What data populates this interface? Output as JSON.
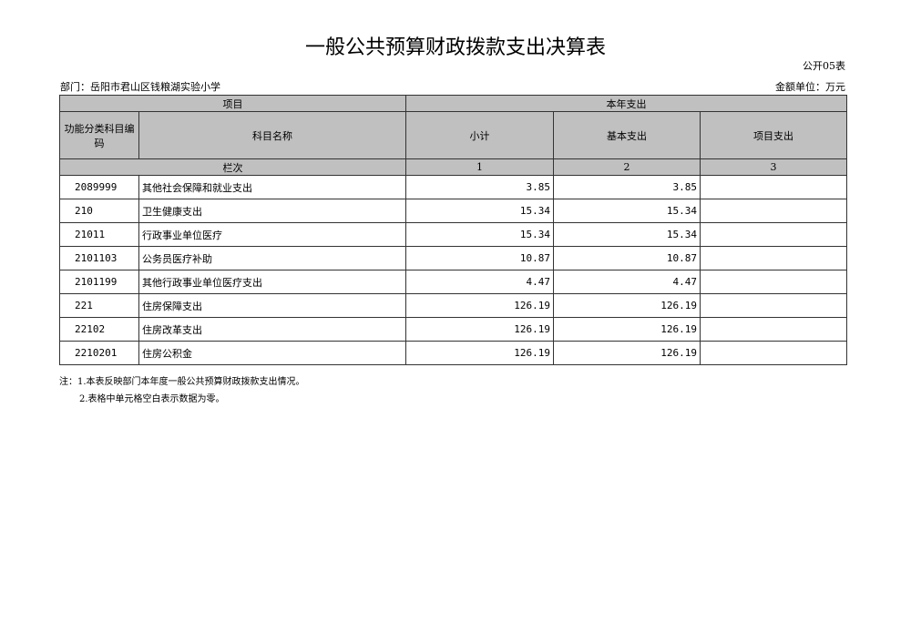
{
  "title": "一般公共预算财政拨款支出决算表",
  "table_no": "公开05表",
  "department": "部门：岳阳市君山区钱粮湖实验小学",
  "unit": "金额单位：万元",
  "header": {
    "item": "项目",
    "current_year": "本年支出",
    "code": "功能分类科目编码",
    "name": "科目名称",
    "subtotal": "小计",
    "basic": "基本支出",
    "project": "项目支出",
    "column_index": "栏次",
    "col1": "1",
    "col2": "2",
    "col3": "3"
  },
  "rows": [
    {
      "code": "2089999",
      "name": "其他社会保障和就业支出",
      "subtotal": "3.85",
      "basic": "3.85",
      "project": ""
    },
    {
      "code": "210",
      "name": "卫生健康支出",
      "subtotal": "15.34",
      "basic": "15.34",
      "project": ""
    },
    {
      "code": "21011",
      "name": "行政事业单位医疗",
      "subtotal": "15.34",
      "basic": "15.34",
      "project": ""
    },
    {
      "code": "2101103",
      "name": "公务员医疗补助",
      "subtotal": "10.87",
      "basic": "10.87",
      "project": ""
    },
    {
      "code": "2101199",
      "name": "其他行政事业单位医疗支出",
      "subtotal": "4.47",
      "basic": "4.47",
      "project": ""
    },
    {
      "code": "221",
      "name": "住房保障支出",
      "subtotal": "126.19",
      "basic": "126.19",
      "project": ""
    },
    {
      "code": "22102",
      "name": "住房改革支出",
      "subtotal": "126.19",
      "basic": "126.19",
      "project": ""
    },
    {
      "code": "2210201",
      "name": "住房公积金",
      "subtotal": "126.19",
      "basic": "126.19",
      "project": ""
    }
  ],
  "notes": [
    "注：1.本表反映部门本年度一般公共预算财政拨款支出情况。",
    "2.表格中单元格空白表示数据为零。"
  ]
}
